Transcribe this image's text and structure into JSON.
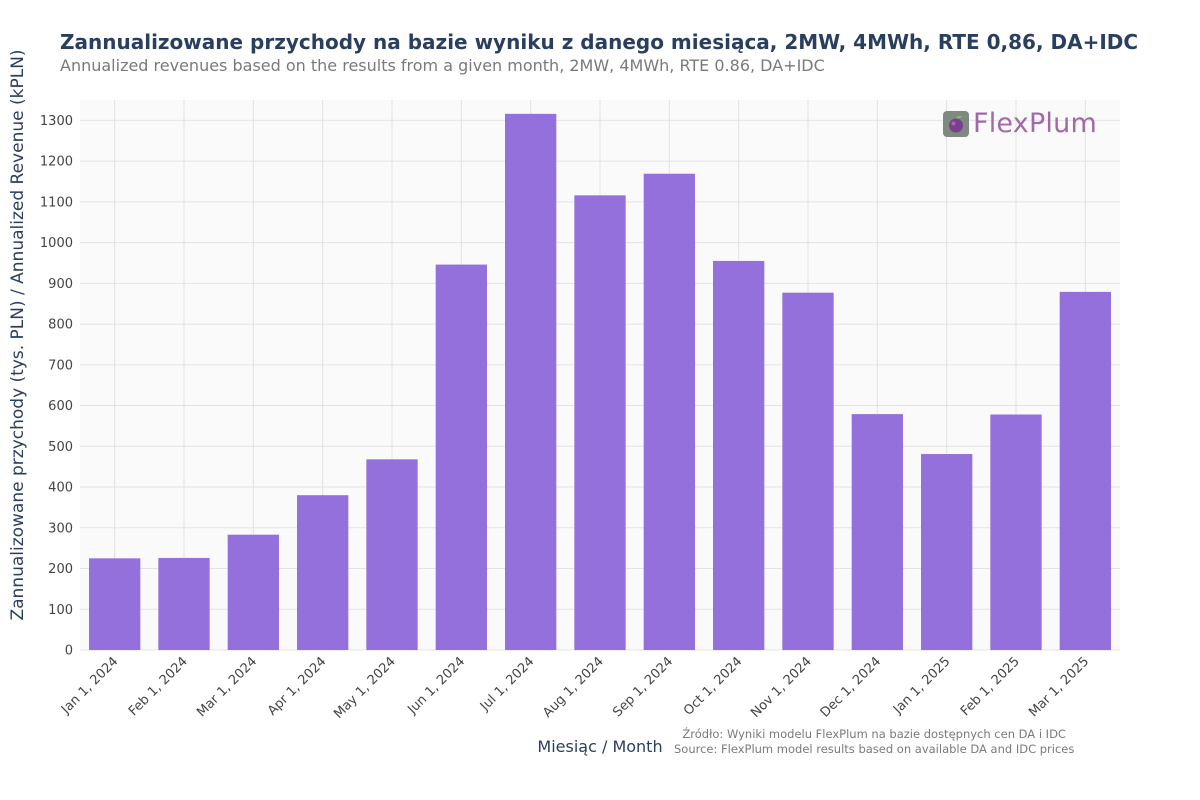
{
  "header": {
    "title": "Zannualizowane przychody na bazie wyniku z danego miesiąca, 2MW, 4MWh, RTE 0,86, DA+IDC",
    "subtitle": "Annualized revenues based on the results from a given month, 2MW, 4MWh, RTE 0.86, DA+IDC"
  },
  "logo": {
    "text": "FlexPlum",
    "icon": "plum-icon"
  },
  "source": {
    "line1": "Źródło: Wyniki modelu FlexPlum na bazie dostępnych cen DA i IDC",
    "line2": "Source: FlexPlum model results based on available DA and IDC prices"
  },
  "colors": {
    "bar": "#9370db",
    "plot_bg": "#fafafa",
    "grid": "#e3e3e3",
    "axis_text": "#2a3f5f",
    "tick_text": "#444444"
  },
  "chart_data": {
    "type": "bar",
    "title": "Zannualizowane przychody na bazie wyniku z danego miesiąca, 2MW, 4MWh, RTE 0,86, DA+IDC",
    "xlabel": "Miesiąc / Month",
    "ylabel": "Zannualizowane przychody (tys. PLN) / Annualized Revenue (kPLN)",
    "ylim": [
      0,
      1350
    ],
    "yticks": [
      0,
      100,
      200,
      300,
      400,
      500,
      600,
      700,
      800,
      900,
      1000,
      1100,
      1200,
      1300
    ],
    "grid": true,
    "categories": [
      "Jan 1, 2024",
      "Feb 1, 2024",
      "Mar 1, 2024",
      "Apr 1, 2024",
      "May 1, 2024",
      "Jun 1, 2024",
      "Jul 1, 2024",
      "Aug 1, 2024",
      "Sep 1, 2024",
      "Oct 1, 2024",
      "Nov 1, 2024",
      "Dec 1, 2024",
      "Jan 1, 2025",
      "Feb 1, 2025",
      "Mar 1, 2025"
    ],
    "values": [
      225,
      226,
      283,
      380,
      468,
      946,
      1316,
      1116,
      1169,
      955,
      877,
      579,
      481,
      578,
      879
    ]
  }
}
